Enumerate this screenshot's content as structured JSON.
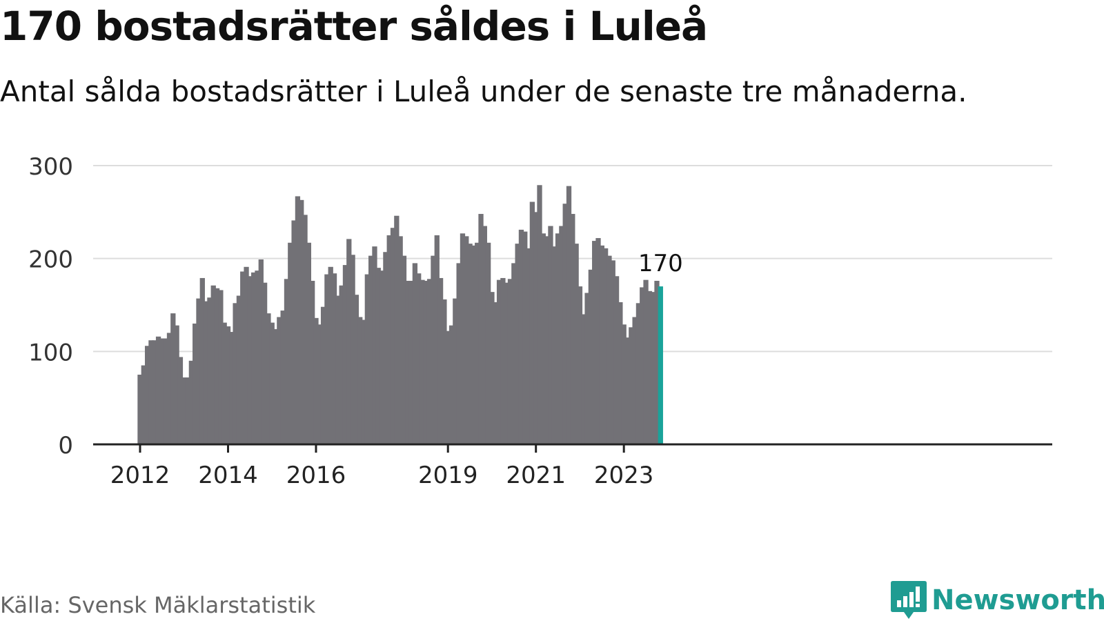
{
  "header": {
    "title": "170 bostadsrätter såldes i Luleå",
    "subtitle": "Antal sålda bostadsrätter i Luleå under de senaste tre månaderna."
  },
  "footer": {
    "source": "Källa: Svensk Mäklarstatistik",
    "brand": "Newsworthy"
  },
  "colors": {
    "bar": "#727176",
    "highlight": "#1aa39a",
    "grid": "#dddddd",
    "axis": "#222222",
    "brand": "#1f9c92"
  },
  "chart_data": {
    "type": "bar",
    "title": "170 bostadsrätter såldes i Luleå",
    "subtitle": "Antal sålda bostadsrätter i Luleå under de senaste tre månaderna.",
    "xlabel": "",
    "ylabel": "",
    "ylim": [
      0,
      300
    ],
    "yticks": [
      "0",
      "100",
      "200",
      "300"
    ],
    "grid": true,
    "x_start": "2012-01",
    "frequency": "monthly",
    "xtick_labels": [
      {
        "label": "2012",
        "index": 0
      },
      {
        "label": "2014",
        "index": 24
      },
      {
        "label": "2016",
        "index": 48
      },
      {
        "label": "2019",
        "index": 84
      },
      {
        "label": "2021",
        "index": 108
      },
      {
        "label": "2023",
        "index": 132
      }
    ],
    "values": [
      75,
      85,
      106,
      112,
      112,
      116,
      114,
      114,
      120,
      141,
      128,
      94,
      72,
      72,
      90,
      130,
      157,
      179,
      154,
      158,
      171,
      168,
      166,
      131,
      127,
      121,
      152,
      160,
      186,
      191,
      181,
      185,
      187,
      199,
      174,
      141,
      131,
      124,
      137,
      144,
      178,
      217,
      241,
      267,
      263,
      247,
      217,
      176,
      136,
      129,
      148,
      183,
      191,
      184,
      160,
      171,
      193,
      221,
      204,
      161,
      137,
      134,
      183,
      203,
      213,
      190,
      187,
      207,
      225,
      233,
      246,
      224,
      203,
      176,
      176,
      195,
      184,
      177,
      176,
      178,
      203,
      225,
      179,
      156,
      122,
      128,
      157,
      195,
      227,
      224,
      216,
      214,
      217,
      248,
      235,
      217,
      164,
      153,
      177,
      179,
      174,
      178,
      195,
      216,
      231,
      229,
      211,
      261,
      250,
      279,
      227,
      224,
      235,
      213,
      227,
      235,
      259,
      278,
      248,
      216,
      170,
      140,
      163,
      188,
      219,
      222,
      214,
      211,
      203,
      198,
      181,
      153,
      129,
      115,
      126,
      137,
      152,
      169,
      177,
      165,
      164,
      176,
      170
    ],
    "highlight_last": true,
    "annotation": "170"
  }
}
